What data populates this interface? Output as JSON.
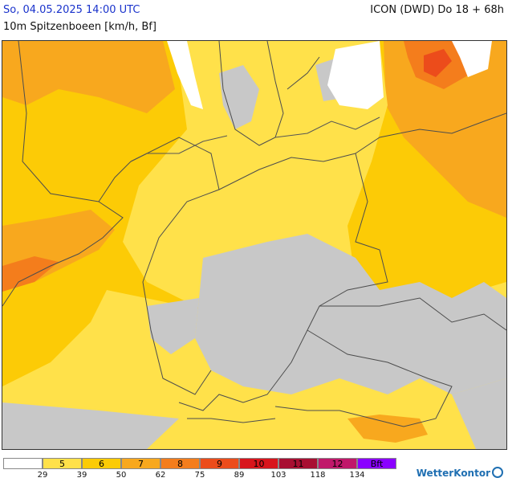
{
  "header": {
    "valid_time": "So, 04.05.2025 14:00 UTC",
    "model_run": "ICON (DWD) Do 18 + 68h",
    "parameter": "10m Spitzenboeen [km/h, Bf]"
  },
  "legend": {
    "bands": [
      {
        "label": "",
        "color": "#ffffff"
      },
      {
        "label": "5",
        "color": "#ffe14a"
      },
      {
        "label": "6",
        "color": "#fccb06"
      },
      {
        "label": "7",
        "color": "#f8a81e"
      },
      {
        "label": "8",
        "color": "#f47d1c"
      },
      {
        "label": "9",
        "color": "#ec4c1b"
      },
      {
        "label": "10",
        "color": "#d8151c"
      },
      {
        "label": "11",
        "color": "#a80f32"
      },
      {
        "label": "12",
        "color": "#c0186a"
      },
      {
        "label": "Bft",
        "color": "#8a00ff"
      }
    ],
    "ticks": [
      "29",
      "39",
      "50",
      "62",
      "75",
      "89",
      "103",
      "118",
      "134"
    ]
  },
  "map": {
    "calm_color": "#c8c8c8",
    "border_color": "#4d4d4d",
    "land_color": "#fccb06"
  },
  "brand": {
    "name": "WetterKontor"
  }
}
